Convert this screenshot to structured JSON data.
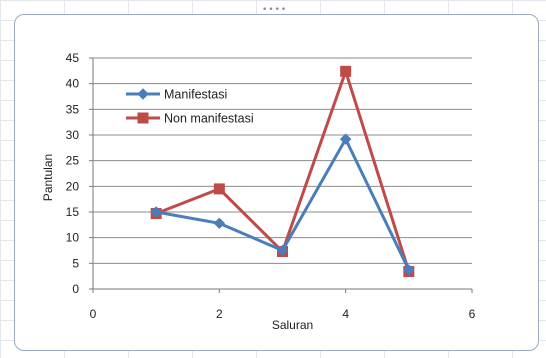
{
  "chart_data": {
    "type": "line",
    "title": "",
    "xlabel": "Saluran",
    "ylabel": "Pantulan",
    "xlim": [
      0,
      6
    ],
    "ylim": [
      0,
      45
    ],
    "x_ticks": [
      0,
      2,
      4,
      6
    ],
    "y_ticks": [
      0,
      5,
      10,
      15,
      20,
      25,
      30,
      35,
      40,
      45
    ],
    "grid": "horizontal",
    "legend_position": "top-left",
    "series": [
      {
        "name": "Manifestasi",
        "color": "#4a7ebb",
        "marker": "diamond",
        "x": [
          1,
          2,
          3,
          4,
          5
        ],
        "y": [
          15.0,
          12.8,
          7.5,
          29.2,
          3.7
        ]
      },
      {
        "name": "Non manifestasi",
        "color": "#be4b48",
        "marker": "square",
        "x": [
          1,
          2,
          3,
          4,
          5
        ],
        "y": [
          14.7,
          19.5,
          7.3,
          42.4,
          3.4
        ]
      }
    ]
  }
}
